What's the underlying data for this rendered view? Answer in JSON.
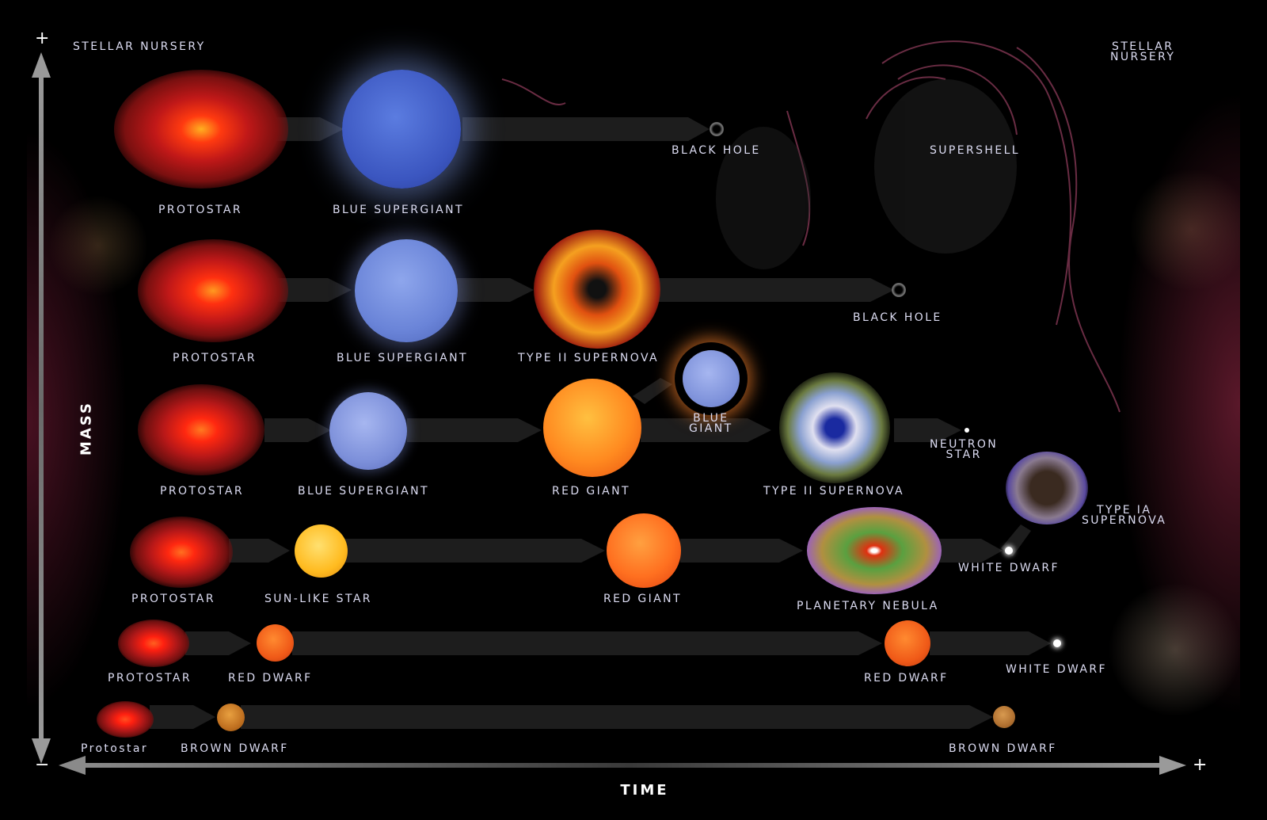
{
  "axes": {
    "mass_label": "MASS",
    "time_label": "TIME",
    "plus": "+",
    "minus": "−"
  },
  "corners": {
    "nursery_left": "STELLAR NURSERY",
    "nursery_right": "STELLAR\nNURSERY"
  },
  "row1": {
    "protostar": "PROTOSTAR",
    "blue_supergiant": "BLUE SUPERGIANT",
    "black_hole": "BLACK HOLE",
    "supershell": "SUPERSHELL"
  },
  "row2": {
    "protostar": "PROTOSTAR",
    "blue_supergiant": "BLUE SUPERGIANT",
    "supernova": "TYPE II SUPERNOVA",
    "black_hole": "BLACK HOLE"
  },
  "row3": {
    "protostar": "PROTOSTAR",
    "blue_supergiant": "BLUE SUPERGIANT",
    "red_giant": "RED GIANT",
    "blue_giant": "BLUE\nGIANT",
    "supernova": "TYPE II SUPERNOVA",
    "neutron_star": "NEUTRON\nSTAR",
    "type_ia": "TYPE IA\nSUPERNOVA"
  },
  "row4": {
    "protostar": "PROTOSTAR",
    "sun_like": "SUN-LIKE STAR",
    "red_giant": "RED GIANT",
    "planetary_nebula": "PLANETARY NEBULA",
    "white_dwarf": "WHITE DWARF"
  },
  "row5": {
    "protostar": "PROTOSTAR",
    "red_dwarf": "RED DWARF",
    "red_dwarf_end": "RED DWARF",
    "white_dwarf": "WHITE DWARF"
  },
  "row6": {
    "protostar": "Protostar",
    "brown_dwarf": "BROWN DWARF",
    "brown_dwarf_end": "BROWN DWARF"
  }
}
